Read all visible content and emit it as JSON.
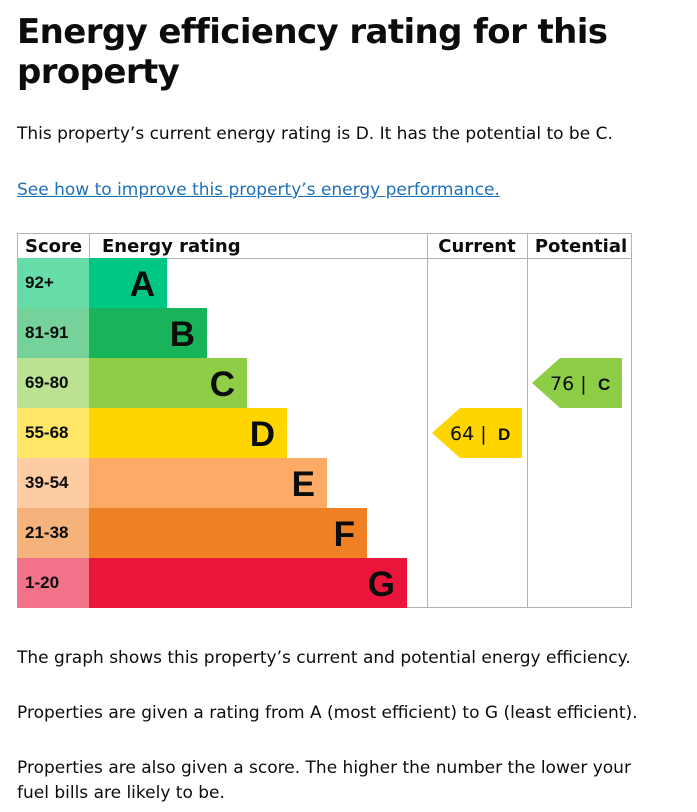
{
  "page": {
    "heading": "Energy efficiency rating for this property",
    "intro": "This property’s current energy rating is D. It has the potential to be C.",
    "improve_link": "See how to improve this property’s energy performance.",
    "notes": [
      "The graph shows this property’s current and potential energy efficiency.",
      "Properties are given a rating from A (most efficient) to G (least efficient).",
      "Properties are also given a score. The higher the number the lower your fuel bills are likely to be."
    ]
  },
  "chart_data": {
    "type": "table",
    "columns": [
      "Score",
      "Energy rating",
      "Current",
      "Potential"
    ],
    "bands": [
      {
        "letter": "A",
        "score": "92+",
        "color": "#00c781",
        "score_bg": "#66dda9"
      },
      {
        "letter": "B",
        "score": "81-91",
        "color": "#19b459",
        "score_bg": "#75d29b"
      },
      {
        "letter": "C",
        "score": "69-80",
        "color": "#8dce46",
        "score_bg": "#bbe290"
      },
      {
        "letter": "D",
        "score": "55-68",
        "color": "#ffd500",
        "score_bg": "#ffe666"
      },
      {
        "letter": "E",
        "score": "39-54",
        "color": "#fcaa65",
        "score_bg": "#fdcca3"
      },
      {
        "letter": "F",
        "score": "21-38",
        "color": "#ef8023",
        "score_bg": "#f5b37b"
      },
      {
        "letter": "G",
        "score": "1-20",
        "color": "#e9153b",
        "score_bg": "#f27389"
      }
    ],
    "current": {
      "value": 64,
      "label": "64 |",
      "letter": "D"
    },
    "potential": {
      "value": 76,
      "label": "76 |",
      "letter": "C"
    }
  }
}
